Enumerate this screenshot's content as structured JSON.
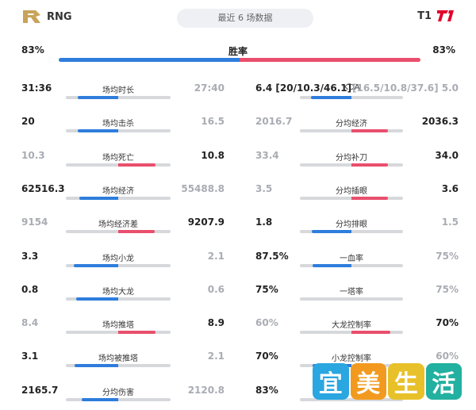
{
  "header": {
    "left_team": "RNG",
    "right_team": "T1",
    "subtitle": "最近 6 场数据"
  },
  "win_rate": {
    "label": "胜率",
    "left": "83%",
    "right": "83%",
    "left_fraction": 0.5
  },
  "left_stats": [
    {
      "label": "场均时长",
      "left": "31:36",
      "right": "27:40",
      "left_fraction": 0.55,
      "winner": "left"
    },
    {
      "label": "场均击杀",
      "left": "20",
      "right": "16.5",
      "left_fraction": 0.55,
      "winner": "left"
    },
    {
      "label": "场均死亡",
      "left": "10.3",
      "right": "10.8",
      "left_fraction": 0.49,
      "winner": "right"
    },
    {
      "label": "场均经济",
      "left": "62516.3",
      "right": "55488.8",
      "left_fraction": 0.53,
      "winner": "left"
    },
    {
      "label": "场均经济差",
      "left": "9154",
      "right": "9207.9",
      "left_fraction": 0.5,
      "winner": "right"
    },
    {
      "label": "场均小龙",
      "left": "3.3",
      "right": "2.1",
      "left_fraction": 0.61,
      "winner": "left"
    },
    {
      "label": "场均大龙",
      "left": "0.8",
      "right": "0.6",
      "left_fraction": 0.57,
      "winner": "left"
    },
    {
      "label": "场均推塔",
      "left": "8.4",
      "right": "8.9",
      "left_fraction": 0.49,
      "winner": "right"
    },
    {
      "label": "场均被推塔",
      "left": "3.1",
      "right": "2.1",
      "left_fraction": 0.6,
      "winner": "left"
    },
    {
      "label": "分均伤害",
      "left": "2165.7",
      "right": "2120.8",
      "left_fraction": 0.5,
      "winner": "left"
    }
  ],
  "right_stats": [
    {
      "label": "KDA",
      "left": "6.4 [20/10.3/46.1]",
      "right": "[16.5/10.8/37.6] 5.0",
      "left_fraction": 0.56,
      "winner": "left"
    },
    {
      "label": "分均经济",
      "left": "2016.7",
      "right": "2036.3",
      "left_fraction": 0.5,
      "winner": "right"
    },
    {
      "label": "分均补刀",
      "left": "33.4",
      "right": "34.0",
      "left_fraction": 0.5,
      "winner": "right"
    },
    {
      "label": "分均插眼",
      "left": "3.5",
      "right": "3.6",
      "left_fraction": 0.49,
      "winner": "right"
    },
    {
      "label": "分均排眼",
      "left": "1.8",
      "right": "1.5",
      "left_fraction": 0.55,
      "winner": "left"
    },
    {
      "label": "一血率",
      "left": "87.5%",
      "right": "75%",
      "left_fraction": 0.54,
      "winner": "left"
    },
    {
      "label": "一塔率",
      "left": "75%",
      "right": "75%",
      "left_fraction": 0.5,
      "winner": "none"
    },
    {
      "label": "大龙控制率",
      "left": "60%",
      "right": "70%",
      "left_fraction": 0.46,
      "winner": "right"
    },
    {
      "label": "小龙控制率",
      "left": "70%",
      "right": "60%",
      "left_fraction": 0.54,
      "winner": "left"
    },
    {
      "label": "",
      "left": "83%",
      "right": "",
      "left_fraction": 0.5,
      "winner": "none"
    }
  ],
  "watermark": {
    "chars": [
      "宜",
      "美",
      "生",
      "活"
    ],
    "colors": [
      "#2aa6e0",
      "#f29a1f",
      "#e8c12a",
      "#22b0a0"
    ]
  },
  "colors": {
    "left_team": "#2e7ddc",
    "right_team": "#e94f6d",
    "track": "#d6d8dc",
    "muted_text": "#a9acb3"
  }
}
